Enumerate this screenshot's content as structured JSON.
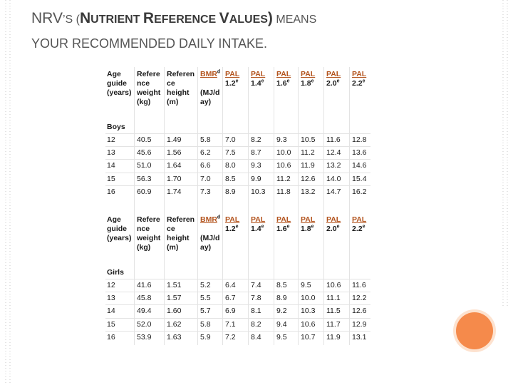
{
  "title": {
    "line1_prefix": "NRV",
    "line1_rest_small": "’S (",
    "line1_bold_n": "N",
    "line1_bold_utrient": "UTRIENT ",
    "line1_bold_r": "R",
    "line1_bold_eference": "EFERENCE ",
    "line1_bold_v": "V",
    "line1_bold_alues": "ALUES",
    "line1_bold_close": ")",
    "line1_means": " MEANS",
    "line2": "YOUR RECOMMENDED DAILY INTAKE."
  },
  "headers": {
    "age": [
      "Age",
      "guide",
      "(years)"
    ],
    "weight": [
      "Refere",
      "nce",
      "weight",
      "(kg)"
    ],
    "height": [
      "Referen",
      "ce",
      "height",
      "(m)"
    ],
    "bmr": [
      "BMR",
      "(MJ/d",
      "ay)"
    ],
    "bmr_sup": "d",
    "pal": [
      {
        "label": "PAL",
        "value": "1.2",
        "sup": "e"
      },
      {
        "label": "PAL",
        "value": "1.4",
        "sup": "e"
      },
      {
        "label": "PAL",
        "value": "1.6",
        "sup": "e"
      },
      {
        "label": "PAL",
        "value": "1.8",
        "sup": "e"
      },
      {
        "label": "PAL",
        "value": "2.0",
        "sup": "e"
      },
      {
        "label": "PAL",
        "value": "2.2",
        "sup": "e"
      }
    ]
  },
  "sections": [
    {
      "label": "Boys",
      "rows": [
        [
          "12",
          "40.5",
          "1.49",
          "5.8",
          "7.0",
          "8.2",
          "9.3",
          "10.5",
          "11.6",
          "12.8"
        ],
        [
          "13",
          "45.6",
          "1.56",
          "6.2",
          "7.5",
          "8.7",
          "10.0",
          "11.2",
          "12.4",
          "13.6"
        ],
        [
          "14",
          "51.0",
          "1.64",
          "6.6",
          "8.0",
          "9.3",
          "10.6",
          "11.9",
          "13.2",
          "14.6"
        ],
        [
          "15",
          "56.3",
          "1.70",
          "7.0",
          "8.5",
          "9.9",
          "11.2",
          "12.6",
          "14.0",
          "15.4"
        ],
        [
          "16",
          "60.9",
          "1.74",
          "7.3",
          "8.9",
          "10.3",
          "11.8",
          "13.2",
          "14.7",
          "16.2"
        ]
      ]
    },
    {
      "label": "Girls",
      "rows": [
        [
          "12",
          "41.6",
          "1.51",
          "5.2",
          "6.4",
          "7.4",
          "8.5",
          "9.5",
          "10.6",
          "11.6"
        ],
        [
          "13",
          "45.8",
          "1.57",
          "5.5",
          "6.7",
          "7.8",
          "8.9",
          "10.0",
          "11.1",
          "12.2"
        ],
        [
          "14",
          "49.4",
          "1.60",
          "5.7",
          "6.9",
          "8.1",
          "9.2",
          "10.3",
          "11.5",
          "12.6"
        ],
        [
          "15",
          "52.0",
          "1.62",
          "5.8",
          "7.1",
          "8.2",
          "9.4",
          "10.6",
          "11.7",
          "12.9"
        ],
        [
          "16",
          "53.9",
          "1.63",
          "5.9",
          "7.2",
          "8.4",
          "9.5",
          "10.7",
          "11.9",
          "13.1"
        ]
      ]
    }
  ],
  "colors": {
    "accent": "#f58a4b",
    "pal_link": "#b3541e",
    "title_text": "#555555"
  }
}
